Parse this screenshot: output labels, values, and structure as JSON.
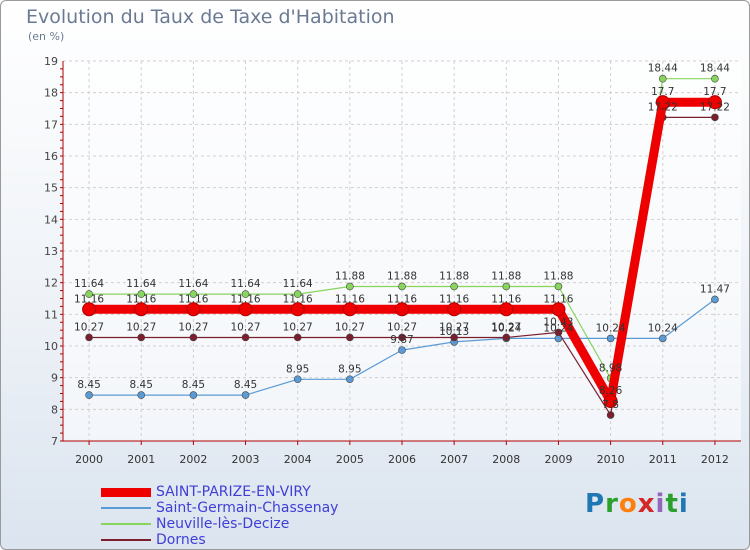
{
  "chart_data": {
    "type": "line",
    "title": "Evolution du Taux de Taxe d'Habitation",
    "unit": "(en %)",
    "x": [
      "2000",
      "2001",
      "2002",
      "2003",
      "2004",
      "2005",
      "2006",
      "2007",
      "2008",
      "2009",
      "2010",
      "2011",
      "2012"
    ],
    "yticks": [
      "7",
      "8",
      "9",
      "10",
      "11",
      "12",
      "13",
      "14",
      "15",
      "16",
      "17",
      "18",
      "19"
    ],
    "ylim": [
      7,
      19
    ],
    "grid": true,
    "legend_position": "bottom-left",
    "series": [
      {
        "name": "SAINT-PARIZE-EN-VIRY",
        "color": "#ee0000",
        "values": [
          11.16,
          11.16,
          11.16,
          11.16,
          11.16,
          11.16,
          11.16,
          11.16,
          11.16,
          11.16,
          8.26,
          17.7,
          17.7
        ],
        "labels": [
          "11.16",
          "11.16",
          "11.16",
          "11.16",
          "11.16",
          "11.16",
          "11.16",
          "11.16",
          "11.16",
          "11.16",
          "8.26",
          "17.7",
          "17.7"
        ]
      },
      {
        "name": "Saint-Germain-Chassenay",
        "color": "#5b9bd5",
        "values": [
          8.45,
          8.45,
          8.45,
          8.45,
          8.95,
          8.95,
          9.87,
          10.13,
          10.24,
          10.24,
          10.24,
          10.24,
          11.47
        ],
        "labels": [
          "8.45",
          "8.45",
          "8.45",
          "8.45",
          "8.95",
          "8.95",
          "9.87",
          "10.13",
          "10.24",
          "10.24",
          "10.24",
          "10.24",
          "11.47"
        ]
      },
      {
        "name": "Neuville-lès-Decize",
        "color": "#88d55e",
        "values": [
          11.64,
          11.64,
          11.64,
          11.64,
          11.64,
          11.88,
          11.88,
          11.88,
          11.88,
          11.88,
          8.98,
          18.44,
          18.44
        ],
        "labels": [
          "11.64",
          "11.64",
          "11.64",
          "11.64",
          "11.64",
          "11.88",
          "11.88",
          "11.88",
          "11.88",
          "11.88",
          "8.98",
          "18.44",
          "18.44"
        ]
      },
      {
        "name": "Dornes",
        "color": "#7b1f2e",
        "values": [
          10.27,
          10.27,
          10.27,
          10.27,
          10.27,
          10.27,
          10.27,
          10.27,
          10.27,
          10.43,
          7.82,
          17.22,
          17.22
        ],
        "labels": [
          "10.27",
          "10.27",
          "10.27",
          "10.27",
          "10.27",
          "10.27",
          "10.27",
          "10.27",
          "10.27",
          "10.43",
          "7.8",
          "17.22",
          "17.22"
        ]
      }
    ]
  },
  "logo": {
    "letters": [
      "P",
      "r",
      "o",
      "x",
      "i",
      "t",
      "i"
    ],
    "colors": [
      "#1f77b4",
      "#2ca02c",
      "#ff7f0e",
      "#d62728",
      "#9467bd",
      "#2ca02c",
      "#1f77b4"
    ]
  }
}
